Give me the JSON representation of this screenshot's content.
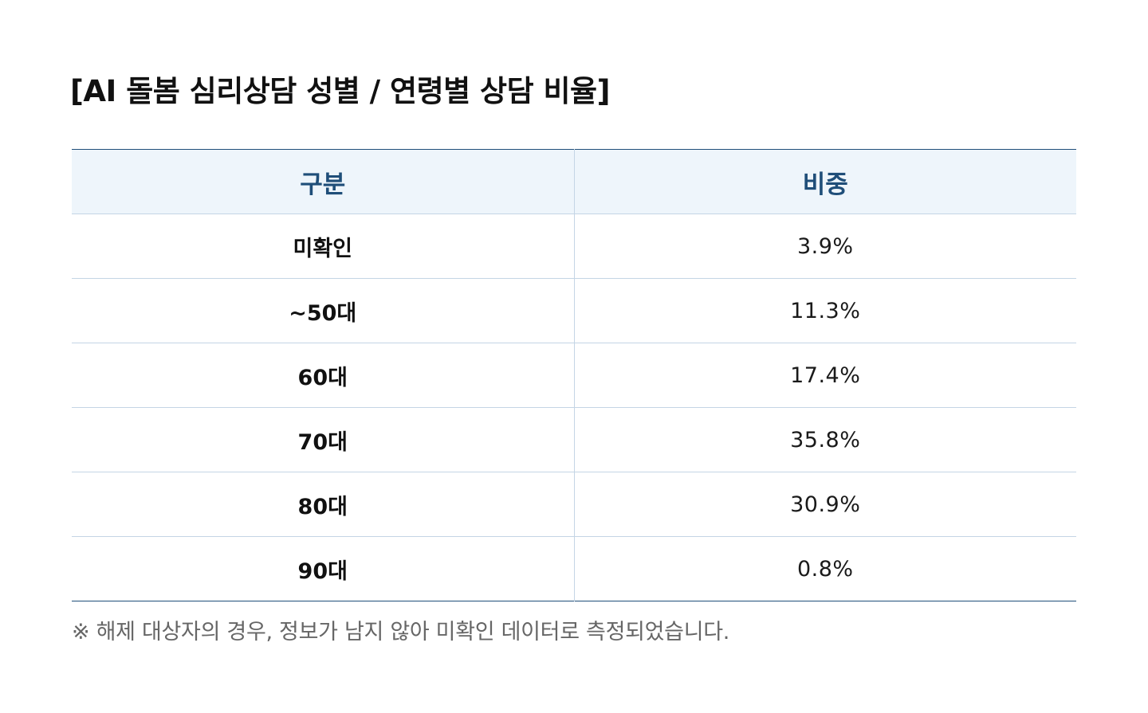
{
  "title": "[AI 돌봄 심리상담 성별 / 연령별 상담 비율]",
  "table": {
    "headers": [
      "구분",
      "비중"
    ],
    "rows": [
      {
        "category": "미확인",
        "value": "3.9%"
      },
      {
        "category": "~50대",
        "value": "11.3%"
      },
      {
        "category": "60대",
        "value": "17.4%"
      },
      {
        "category": "70대",
        "value": "35.8%"
      },
      {
        "category": "80대",
        "value": "30.9%"
      },
      {
        "category": "90대",
        "value": "0.8%"
      }
    ]
  },
  "note": "※ 해제 대상자의 경우, 정보가 남지 않아 미확인 데이터로 측정되었습니다.",
  "colors": {
    "header_text": "#1f4e79",
    "header_bg": "#eef5fb",
    "border_strong": "#1f4e79",
    "border_light": "#c4d5e5",
    "note_text": "#666666"
  }
}
